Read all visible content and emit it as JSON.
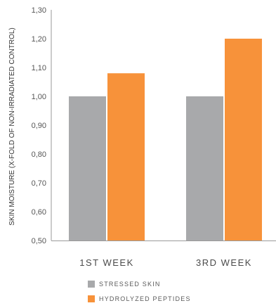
{
  "chart_data": {
    "type": "bar",
    "categories": [
      "1ST WEEK",
      "3RD WEEK"
    ],
    "series": [
      {
        "name": "STRESSED SKIN",
        "values": [
          1.0,
          1.0
        ],
        "color": "#a8a9ab"
      },
      {
        "name": "HYDROLYZED PEPTIDES",
        "values": [
          1.08,
          1.2
        ],
        "color": "#f7923a"
      }
    ],
    "ylabel": "SKIN MOISTURE (X-FOLD OF NON-IRRADIATED CONTROL)",
    "ylim": [
      0.5,
      1.3
    ],
    "yticks": [
      "0,50",
      "0,60",
      "0,70",
      "0,80",
      "0,90",
      "1,00",
      "1,10",
      "1,20",
      "1,30"
    ],
    "legend_position": "bottom",
    "grid": false
  }
}
